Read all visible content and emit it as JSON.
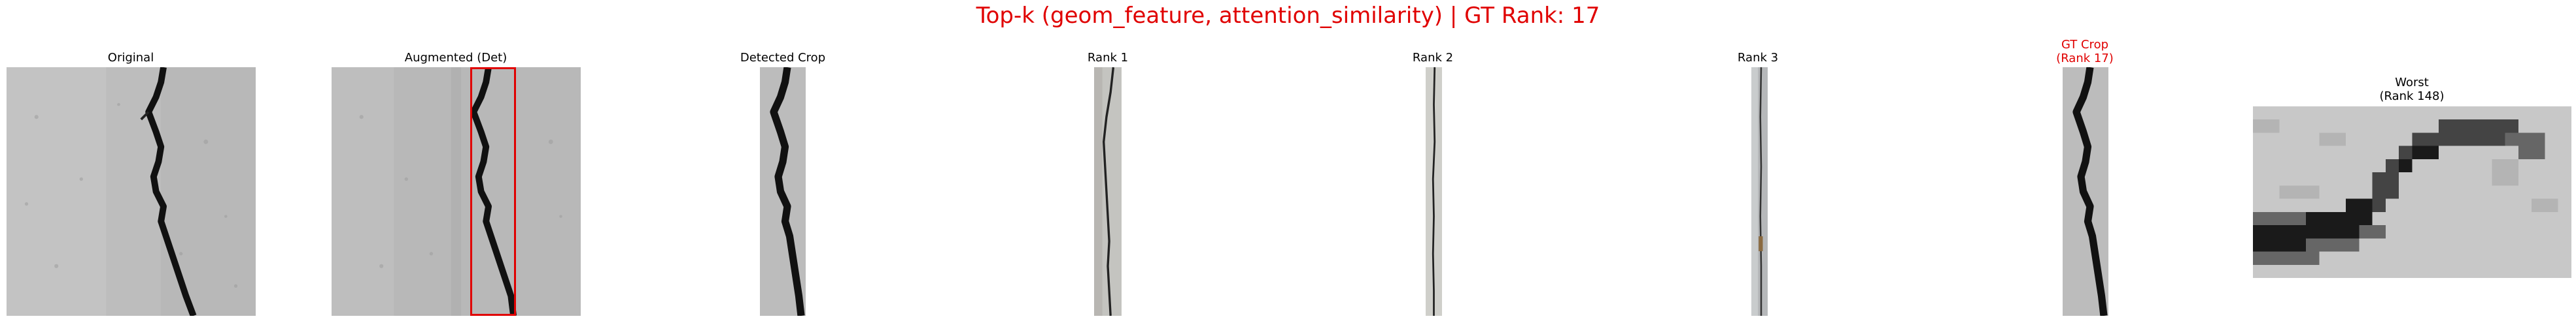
{
  "suptitle": "Top-k (geom_feature, attention_similarity) | GT Rank: 17",
  "colors": {
    "title": "#e00000",
    "highlight_title": "#e00000",
    "normal_title": "#000000",
    "detection_box": "#e00000"
  },
  "panels": [
    {
      "title": "Original",
      "highlight": false
    },
    {
      "title": "Augmented (Det)",
      "highlight": false
    },
    {
      "title": "Detected Crop",
      "highlight": false
    },
    {
      "title": "Rank 1",
      "highlight": false
    },
    {
      "title": "Rank 2",
      "highlight": false
    },
    {
      "title": "Rank 3",
      "highlight": false
    },
    {
      "title": "GT Crop\n(Rank 17)",
      "highlight": true
    },
    {
      "title": "Worst\n(Rank 148)",
      "highlight": false
    }
  ]
}
